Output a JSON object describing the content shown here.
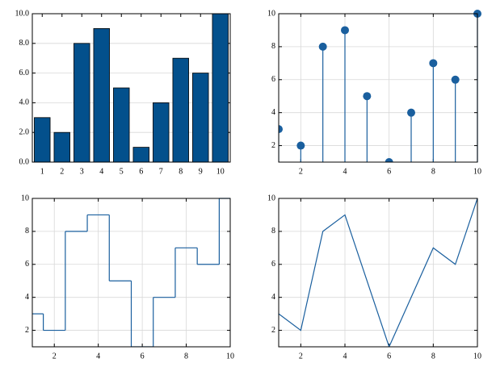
{
  "chart_data": [
    {
      "type": "bar",
      "categories": [
        "1",
        "2",
        "3",
        "4",
        "5",
        "6",
        "7",
        "8",
        "9",
        "10"
      ],
      "values": [
        3,
        2,
        8,
        9,
        5,
        1,
        4,
        7,
        6,
        10
      ],
      "color": "#03508c",
      "ylim": [
        0,
        10
      ],
      "yticks": [
        {
          "value": 0,
          "label": "0.0"
        },
        {
          "value": 2,
          "label": "2.0"
        },
        {
          "value": 4,
          "label": "4.0"
        },
        {
          "value": 6,
          "label": "6.0"
        },
        {
          "value": 8,
          "label": "8.0"
        },
        {
          "value": 10,
          "label": "10.0"
        }
      ],
      "grid": true
    },
    {
      "type": "stem",
      "x": [
        1,
        2,
        3,
        4,
        5,
        6,
        7,
        8,
        9,
        10
      ],
      "values": [
        3,
        2,
        8,
        9,
        5,
        1,
        4,
        7,
        6,
        10
      ],
      "color": "#1a5f9e",
      "xlim": [
        1,
        10
      ],
      "ylim": [
        1,
        10
      ],
      "xticks": [
        2,
        4,
        6,
        8,
        10
      ],
      "yticks": [
        2,
        4,
        6,
        8,
        10
      ],
      "grid": true
    },
    {
      "type": "step",
      "x": [
        1,
        2,
        3,
        4,
        5,
        6,
        7,
        8,
        9,
        10
      ],
      "values": [
        3,
        2,
        8,
        9,
        5,
        1,
        4,
        7,
        6,
        10
      ],
      "color": "#1a5f9e",
      "xlim": [
        1,
        10
      ],
      "ylim": [
        1,
        10
      ],
      "xticks": [
        2,
        4,
        6,
        8,
        10
      ],
      "yticks": [
        2,
        4,
        6,
        8,
        10
      ],
      "grid": true
    },
    {
      "type": "line",
      "x": [
        1,
        2,
        3,
        4,
        5,
        6,
        7,
        8,
        9,
        10
      ],
      "values": [
        3,
        2,
        8,
        9,
        5,
        1,
        4,
        7,
        6,
        10
      ],
      "color": "#1a5f9e",
      "xlim": [
        1,
        10
      ],
      "ylim": [
        1,
        10
      ],
      "xticks": [
        2,
        4,
        6,
        8,
        10
      ],
      "yticks": [
        2,
        4,
        6,
        8,
        10
      ],
      "grid": true
    }
  ]
}
